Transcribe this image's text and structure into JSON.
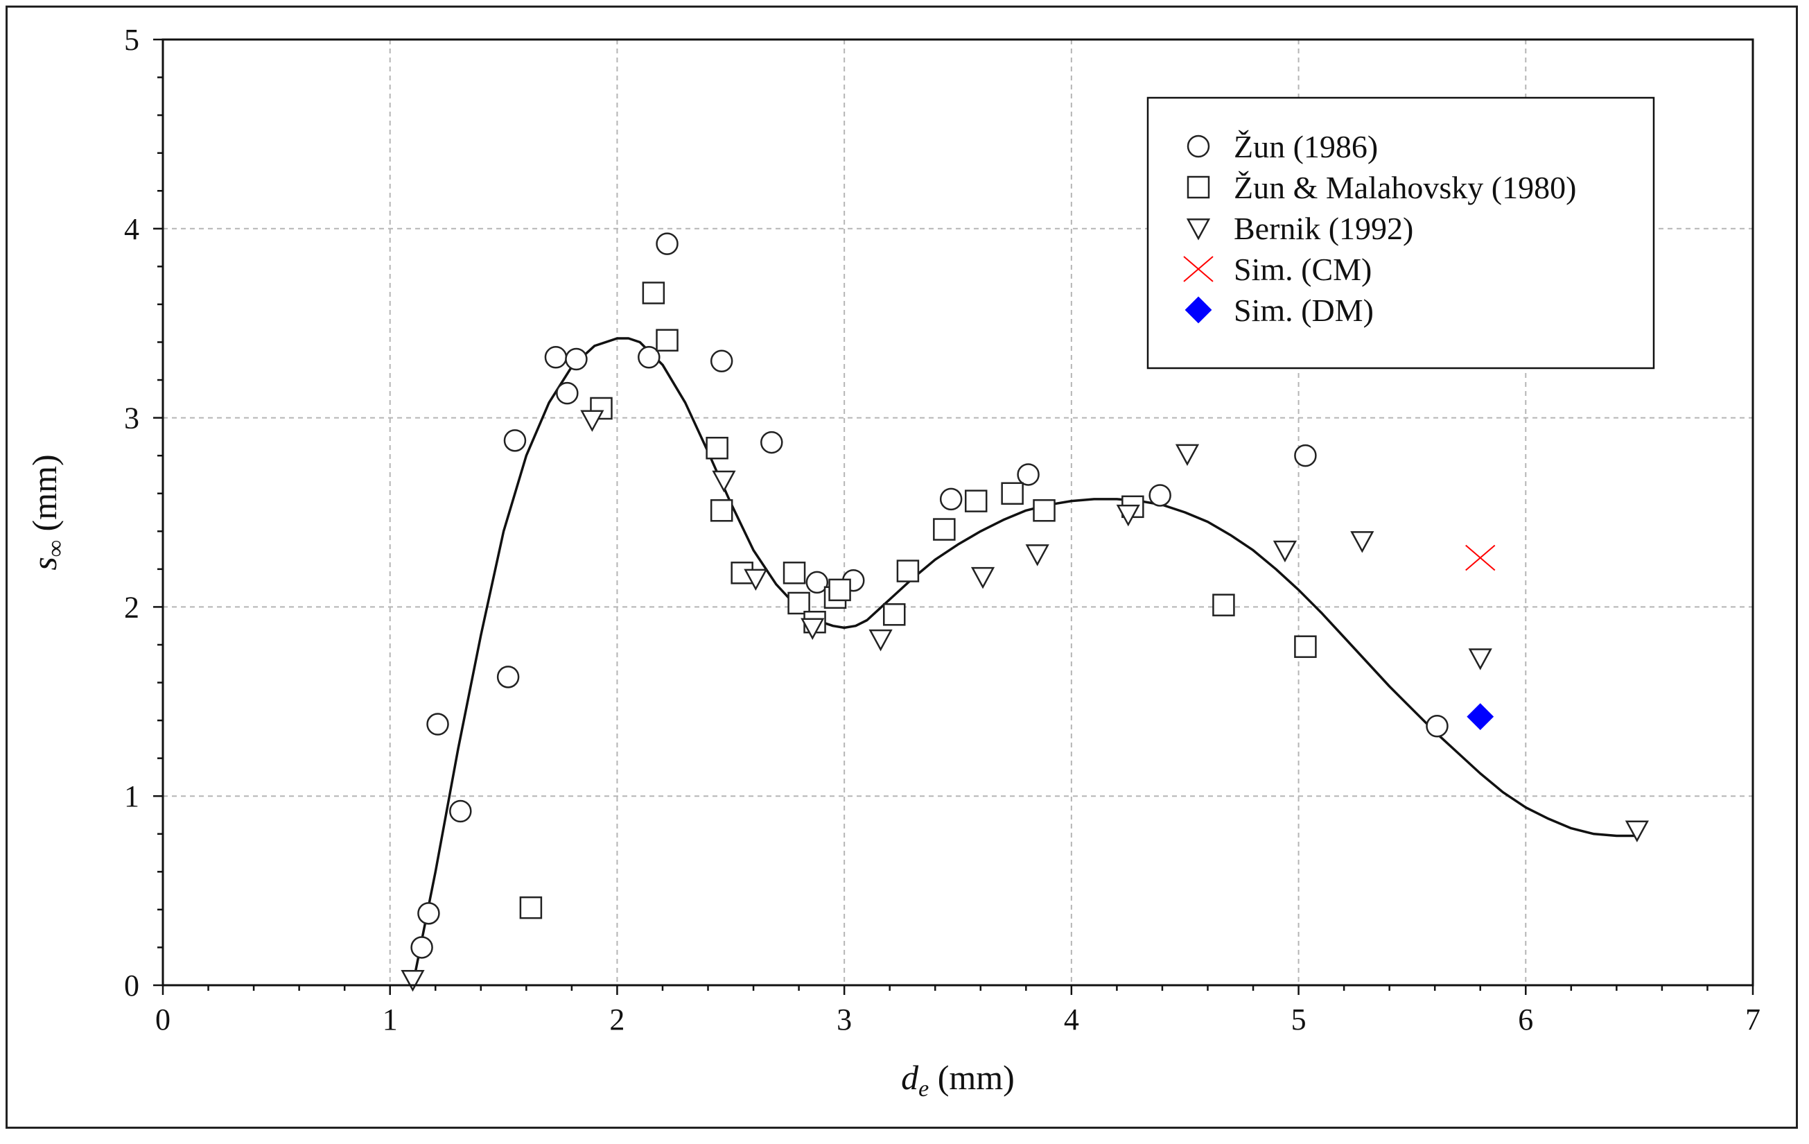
{
  "chart_data": {
    "type": "scatter",
    "title": "",
    "xlabel": {
      "symbol": "d",
      "subscript": "e",
      "unit": " (mm)"
    },
    "ylabel": {
      "symbol": "s",
      "subscript": "∞",
      "unit": " (mm)"
    },
    "xlim": [
      0,
      7
    ],
    "ylim": [
      0,
      5
    ],
    "xticks": [
      "0",
      "1",
      "2",
      "3",
      "4",
      "5",
      "6",
      "7"
    ],
    "yticks": [
      "0",
      "1",
      "2",
      "3",
      "4",
      "5"
    ],
    "grid": true,
    "legend_position": "top-right",
    "series": [
      {
        "name": "Žun (1986)",
        "marker": "circle",
        "color": "#222222",
        "points": [
          [
            1.14,
            0.2
          ],
          [
            1.17,
            0.38
          ],
          [
            1.21,
            1.38
          ],
          [
            1.31,
            0.92
          ],
          [
            1.52,
            1.63
          ],
          [
            1.55,
            2.88
          ],
          [
            1.73,
            3.32
          ],
          [
            1.78,
            3.13
          ],
          [
            1.82,
            3.31
          ],
          [
            2.14,
            3.32
          ],
          [
            2.22,
            3.92
          ],
          [
            2.46,
            3.3
          ],
          [
            2.68,
            2.87
          ],
          [
            2.88,
            2.13
          ],
          [
            3.04,
            2.14
          ],
          [
            3.47,
            2.57
          ],
          [
            3.81,
            2.7
          ],
          [
            4.39,
            2.59
          ],
          [
            5.03,
            2.8
          ],
          [
            5.61,
            1.37
          ]
        ]
      },
      {
        "name": "Žun & Malahovsky (1980)",
        "marker": "square",
        "color": "#222222",
        "points": [
          [
            1.62,
            0.41
          ],
          [
            1.93,
            3.05
          ],
          [
            2.16,
            3.66
          ],
          [
            2.22,
            3.41
          ],
          [
            2.44,
            2.84
          ],
          [
            2.46,
            2.51
          ],
          [
            2.55,
            2.18
          ],
          [
            2.78,
            2.18
          ],
          [
            2.8,
            2.02
          ],
          [
            2.87,
            1.92
          ],
          [
            2.96,
            2.05
          ],
          [
            2.98,
            2.09
          ],
          [
            3.22,
            1.96
          ],
          [
            3.28,
            2.19
          ],
          [
            3.44,
            2.41
          ],
          [
            3.58,
            2.56
          ],
          [
            3.74,
            2.6
          ],
          [
            3.88,
            2.51
          ],
          [
            4.27,
            2.53
          ],
          [
            4.67,
            2.01
          ],
          [
            5.03,
            1.79
          ]
        ]
      },
      {
        "name": "Bernik (1992)",
        "marker": "triangle-down",
        "color": "#222222",
        "points": [
          [
            1.1,
            0.03
          ],
          [
            1.89,
            2.99
          ],
          [
            2.47,
            2.67
          ],
          [
            2.61,
            2.15
          ],
          [
            2.86,
            1.89
          ],
          [
            3.16,
            1.83
          ],
          [
            3.61,
            2.16
          ],
          [
            3.85,
            2.28
          ],
          [
            4.25,
            2.49
          ],
          [
            4.51,
            2.81
          ],
          [
            4.94,
            2.3
          ],
          [
            5.28,
            2.35
          ],
          [
            5.8,
            1.73
          ],
          [
            6.49,
            0.82
          ]
        ]
      },
      {
        "name": "Sim. (CM)",
        "marker": "bowtie",
        "color": "#ff0000",
        "points": [
          [
            5.8,
            2.26
          ]
        ]
      },
      {
        "name": "Sim. (DM)",
        "marker": "diamond",
        "color": "#0000ff",
        "points": [
          [
            5.8,
            1.42
          ]
        ]
      }
    ],
    "fit_curve": {
      "name": "fit",
      "color": "#111111",
      "x": [
        1.1,
        1.2,
        1.3,
        1.4,
        1.5,
        1.6,
        1.7,
        1.8,
        1.9,
        2.0,
        2.05,
        2.1,
        2.2,
        2.3,
        2.4,
        2.5,
        2.6,
        2.7,
        2.8,
        2.9,
        2.95,
        3.0,
        3.05,
        3.1,
        3.2,
        3.3,
        3.4,
        3.5,
        3.6,
        3.7,
        3.8,
        3.9,
        4.0,
        4.1,
        4.2,
        4.3,
        4.4,
        4.5,
        4.6,
        4.7,
        4.8,
        4.9,
        5.0,
        5.1,
        5.2,
        5.3,
        5.4,
        5.5,
        5.6,
        5.7,
        5.8,
        5.9,
        6.0,
        6.1,
        6.2,
        6.3,
        6.4,
        6.5
      ],
      "y": [
        0.0,
        0.6,
        1.25,
        1.85,
        2.4,
        2.8,
        3.08,
        3.27,
        3.38,
        3.42,
        3.42,
        3.4,
        3.28,
        3.08,
        2.82,
        2.55,
        2.3,
        2.12,
        1.99,
        1.92,
        1.9,
        1.89,
        1.9,
        1.93,
        2.04,
        2.15,
        2.25,
        2.33,
        2.4,
        2.46,
        2.51,
        2.54,
        2.56,
        2.57,
        2.57,
        2.56,
        2.54,
        2.5,
        2.45,
        2.38,
        2.3,
        2.2,
        2.09,
        1.97,
        1.84,
        1.71,
        1.58,
        1.46,
        1.34,
        1.23,
        1.12,
        1.02,
        0.94,
        0.88,
        0.83,
        0.8,
        0.79,
        0.79
      ]
    }
  }
}
